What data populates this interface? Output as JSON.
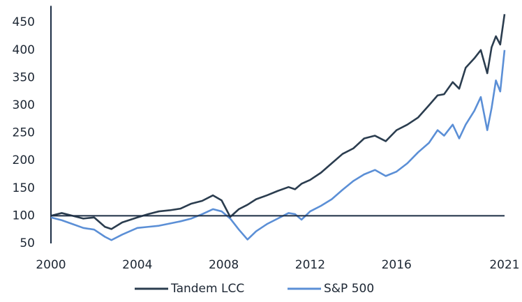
{
  "chart_data": {
    "type": "line",
    "x": [
      2000,
      2000.5,
      2001,
      2001.5,
      2002,
      2002.5,
      2002.8,
      2003.3,
      2004,
      2004.5,
      2005,
      2005.5,
      2006,
      2006.5,
      2007,
      2007.5,
      2007.9,
      2008.3,
      2008.7,
      2009.1,
      2009.5,
      2010,
      2010.5,
      2011,
      2011.3,
      2011.6,
      2012,
      2012.5,
      2013,
      2013.5,
      2014,
      2014.5,
      2015,
      2015.5,
      2016,
      2016.5,
      2017,
      2017.5,
      2017.9,
      2018.2,
      2018.6,
      2018.9,
      2019.2,
      2019.6,
      2019.9,
      2020.2,
      2020.4,
      2020.6,
      2020.8,
      2021
    ],
    "series": [
      {
        "name": "Tandem LCC",
        "color": "#2b3d4f",
        "values": [
          100,
          105,
          100,
          95,
          97,
          80,
          76,
          88,
          97,
          103,
          108,
          110,
          113,
          122,
          127,
          137,
          128,
          98,
          112,
          120,
          130,
          137,
          145,
          152,
          148,
          158,
          165,
          178,
          195,
          212,
          222,
          240,
          245,
          235,
          255,
          265,
          278,
          300,
          318,
          320,
          342,
          330,
          368,
          385,
          400,
          358,
          405,
          425,
          410,
          465
        ]
      },
      {
        "name": "S&P 500",
        "color": "#5b8fd6",
        "values": [
          97,
          92,
          85,
          78,
          75,
          62,
          56,
          66,
          78,
          80,
          82,
          86,
          90,
          95,
          103,
          112,
          108,
          95,
          75,
          57,
          72,
          85,
          95,
          105,
          103,
          93,
          108,
          118,
          130,
          147,
          163,
          175,
          183,
          172,
          180,
          195,
          215,
          232,
          255,
          245,
          265,
          240,
          265,
          290,
          315,
          255,
          295,
          345,
          325,
          400
        ]
      }
    ],
    "xlim": [
      2000,
      2021
    ],
    "xticks": [
      2000,
      2004,
      2008,
      2012,
      2016,
      2021
    ],
    "ylim": [
      50,
      480
    ],
    "yticks": [
      50,
      100,
      150,
      200,
      250,
      300,
      350,
      400,
      450
    ],
    "hline": 100,
    "hline_color": "#1c2e45",
    "grid": false,
    "legend": "bottom"
  }
}
